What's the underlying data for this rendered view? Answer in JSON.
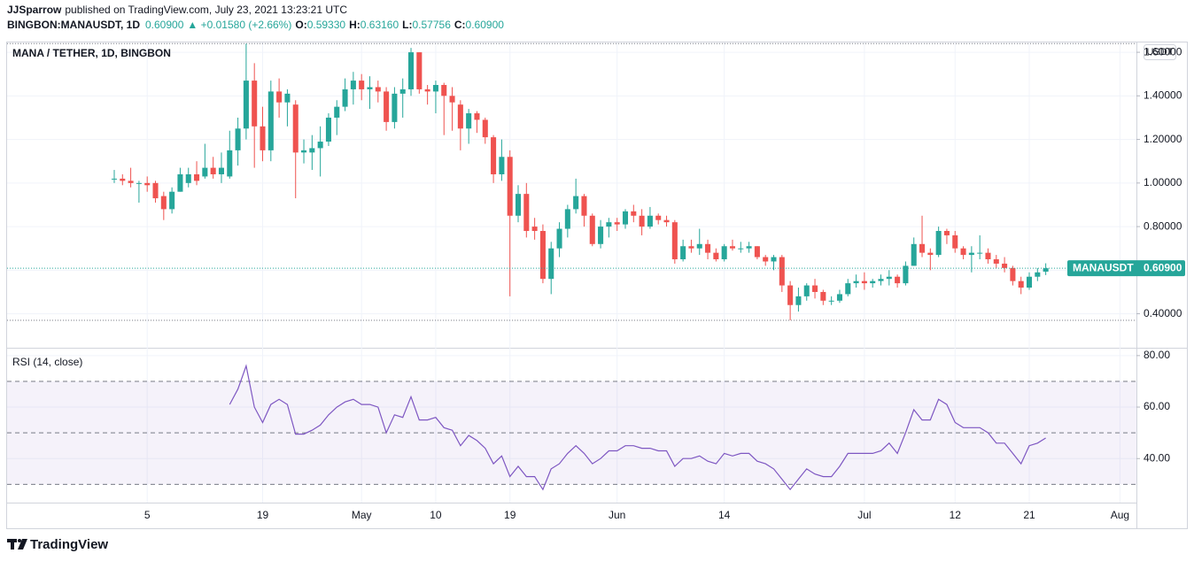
{
  "header": {
    "author": "JJSparrow",
    "published": "published on TradingView.com, July 23, 2021 13:23:21 UTC",
    "symbol": "BINGBON:MANAUSDT, 1D",
    "price": "0.60900",
    "change": "▲ +0.01580 (+2.66%)",
    "o_label": "O:",
    "o": "0.59330",
    "h_label": "H:",
    "h": "0.63160",
    "l_label": "L:",
    "l": "0.57756",
    "c_label": "C:",
    "c": "0.60900"
  },
  "chart_data": [
    {
      "type": "candlestick",
      "title": "MANA / TETHER, 1D, BINGBON",
      "currency": "USDT",
      "up_color": "#26a69a",
      "down_color": "#ef5350",
      "grid": true,
      "x": [
        "2021-04-01",
        "2021-04-02",
        "2021-04-03",
        "2021-04-04",
        "2021-04-05",
        "2021-04-06",
        "2021-04-07",
        "2021-04-08",
        "2021-04-09",
        "2021-04-10",
        "2021-04-11",
        "2021-04-12",
        "2021-04-13",
        "2021-04-14",
        "2021-04-15",
        "2021-04-16",
        "2021-04-17",
        "2021-04-18",
        "2021-04-19",
        "2021-04-20",
        "2021-04-21",
        "2021-04-22",
        "2021-04-23",
        "2021-04-24",
        "2021-04-25",
        "2021-04-26",
        "2021-04-27",
        "2021-04-28",
        "2021-04-29",
        "2021-04-30",
        "2021-05-01",
        "2021-05-02",
        "2021-05-03",
        "2021-05-04",
        "2021-05-05",
        "2021-05-06",
        "2021-05-07",
        "2021-05-08",
        "2021-05-09",
        "2021-05-10",
        "2021-05-11",
        "2021-05-12",
        "2021-05-13",
        "2021-05-14",
        "2021-05-15",
        "2021-05-16",
        "2021-05-17",
        "2021-05-18",
        "2021-05-19",
        "2021-05-20",
        "2021-05-21",
        "2021-05-22",
        "2021-05-23",
        "2021-05-24",
        "2021-05-25",
        "2021-05-26",
        "2021-05-27",
        "2021-05-28",
        "2021-05-29",
        "2021-05-30",
        "2021-05-31",
        "2021-06-01",
        "2021-06-02",
        "2021-06-03",
        "2021-06-04",
        "2021-06-05",
        "2021-06-06",
        "2021-06-07",
        "2021-06-08",
        "2021-06-09",
        "2021-06-10",
        "2021-06-11",
        "2021-06-12",
        "2021-06-13",
        "2021-06-14",
        "2021-06-15",
        "2021-06-16",
        "2021-06-17",
        "2021-06-18",
        "2021-06-19",
        "2021-06-20",
        "2021-06-21",
        "2021-06-22",
        "2021-06-23",
        "2021-06-24",
        "2021-06-25",
        "2021-06-26",
        "2021-06-27",
        "2021-06-28",
        "2021-06-29",
        "2021-06-30",
        "2021-07-01",
        "2021-07-02",
        "2021-07-03",
        "2021-07-04",
        "2021-07-05",
        "2021-07-06",
        "2021-07-07",
        "2021-07-08",
        "2021-07-09",
        "2021-07-10",
        "2021-07-11",
        "2021-07-12",
        "2021-07-13",
        "2021-07-14",
        "2021-07-15",
        "2021-07-16",
        "2021-07-17",
        "2021-07-18",
        "2021-07-19",
        "2021-07-20",
        "2021-07-21",
        "2021-07-22",
        "2021-07-23"
      ],
      "open": [
        1.02,
        1.02,
        1.01,
        1.0,
        1.0,
        1.0,
        0.94,
        0.88,
        0.96,
        1.0,
        1.04,
        1.03,
        1.07,
        1.04,
        1.03,
        1.15,
        1.25,
        1.47,
        1.26,
        1.15,
        1.42,
        1.37,
        1.36,
        1.14,
        1.14,
        1.16,
        1.19,
        1.3,
        1.35,
        1.43,
        1.47,
        1.43,
        1.44,
        1.42,
        1.28,
        1.41,
        1.43,
        1.6,
        1.43,
        1.42,
        1.45,
        1.4,
        1.36,
        1.25,
        1.32,
        1.29,
        1.21,
        1.04,
        1.12,
        0.85,
        0.95,
        0.8,
        0.78,
        0.56,
        0.7,
        0.79,
        0.88,
        0.94,
        0.85,
        0.72,
        0.8,
        0.82,
        0.81,
        0.87,
        0.85,
        0.8,
        0.85,
        0.83,
        0.82,
        0.65,
        0.71,
        0.7,
        0.72,
        0.68,
        0.65,
        0.71,
        0.7,
        0.7,
        0.71,
        0.66,
        0.64,
        0.66,
        0.53,
        0.44,
        0.48,
        0.53,
        0.5,
        0.46,
        0.46,
        0.49,
        0.54,
        0.55,
        0.54,
        0.55,
        0.56,
        0.57,
        0.54,
        0.62,
        0.72,
        0.68,
        0.67,
        0.78,
        0.76,
        0.7,
        0.67,
        0.68,
        0.68,
        0.65,
        0.63,
        0.61,
        0.55,
        0.52,
        0.57,
        0.5933
      ],
      "high": [
        1.06,
        1.04,
        1.07,
        1.01,
        1.03,
        1.01,
        0.96,
        0.98,
        1.07,
        1.07,
        1.1,
        1.18,
        1.12,
        1.14,
        1.24,
        1.3,
        1.64,
        1.55,
        1.35,
        1.47,
        1.48,
        1.43,
        1.38,
        1.2,
        1.22,
        1.26,
        1.32,
        1.38,
        1.48,
        1.51,
        1.5,
        1.49,
        1.47,
        1.44,
        1.44,
        1.48,
        1.62,
        1.6,
        1.45,
        1.47,
        1.46,
        1.44,
        1.38,
        1.34,
        1.33,
        1.3,
        1.22,
        1.2,
        1.15,
        0.99,
        1.0,
        0.84,
        0.81,
        0.73,
        0.82,
        0.9,
        1.02,
        0.95,
        0.86,
        0.83,
        0.84,
        0.84,
        0.88,
        0.9,
        0.88,
        0.89,
        0.86,
        0.85,
        0.83,
        0.74,
        0.74,
        0.79,
        0.74,
        0.7,
        0.72,
        0.74,
        0.73,
        0.73,
        0.71,
        0.67,
        0.67,
        0.67,
        0.55,
        0.52,
        0.54,
        0.56,
        0.51,
        0.48,
        0.51,
        0.56,
        0.58,
        0.59,
        0.56,
        0.58,
        0.6,
        0.58,
        0.64,
        0.75,
        0.85,
        0.7,
        0.8,
        0.79,
        0.78,
        0.71,
        0.71,
        0.76,
        0.7,
        0.67,
        0.66,
        0.62,
        0.57,
        0.59,
        0.61,
        0.6316
      ],
      "low": [
        1.0,
        0.99,
        0.98,
        0.91,
        0.96,
        0.91,
        0.83,
        0.86,
        0.96,
        0.98,
        0.99,
        1.02,
        1.02,
        1.0,
        1.02,
        1.08,
        1.2,
        1.07,
        1.1,
        1.1,
        1.3,
        1.26,
        0.93,
        1.09,
        1.06,
        1.03,
        1.17,
        1.22,
        1.33,
        1.36,
        1.38,
        1.34,
        1.37,
        1.24,
        1.25,
        1.3,
        1.4,
        1.41,
        1.36,
        1.32,
        1.22,
        1.24,
        1.15,
        1.18,
        1.23,
        1.18,
        1.0,
        1.01,
        0.48,
        0.82,
        0.75,
        0.74,
        0.54,
        0.49,
        0.66,
        0.75,
        0.86,
        0.8,
        0.71,
        0.7,
        0.75,
        0.78,
        0.79,
        0.82,
        0.76,
        0.79,
        0.81,
        0.8,
        0.63,
        0.64,
        0.68,
        0.67,
        0.65,
        0.64,
        0.64,
        0.69,
        0.68,
        0.68,
        0.65,
        0.62,
        0.6,
        0.5,
        0.37,
        0.41,
        0.46,
        0.47,
        0.44,
        0.44,
        0.45,
        0.48,
        0.52,
        0.51,
        0.52,
        0.53,
        0.53,
        0.52,
        0.53,
        0.62,
        0.66,
        0.6,
        0.66,
        0.72,
        0.68,
        0.65,
        0.59,
        0.65,
        0.63,
        0.61,
        0.59,
        0.53,
        0.49,
        0.51,
        0.55,
        0.57756
      ],
      "close": [
        1.02,
        1.01,
        1.0,
        1.0,
        0.99,
        0.93,
        0.88,
        0.96,
        1.04,
        1.04,
        1.01,
        1.07,
        1.04,
        1.07,
        1.15,
        1.25,
        1.47,
        1.26,
        1.15,
        1.42,
        1.37,
        1.41,
        1.14,
        1.15,
        1.16,
        1.19,
        1.3,
        1.35,
        1.43,
        1.47,
        1.43,
        1.44,
        1.42,
        1.28,
        1.41,
        1.43,
        1.6,
        1.43,
        1.42,
        1.45,
        1.4,
        1.37,
        1.25,
        1.32,
        1.29,
        1.21,
        1.04,
        1.12,
        0.85,
        0.95,
        0.78,
        0.78,
        0.56,
        0.7,
        0.79,
        0.88,
        0.94,
        0.85,
        0.72,
        0.8,
        0.82,
        0.81,
        0.87,
        0.85,
        0.8,
        0.85,
        0.83,
        0.82,
        0.65,
        0.71,
        0.7,
        0.72,
        0.68,
        0.65,
        0.71,
        0.7,
        0.7,
        0.71,
        0.66,
        0.64,
        0.66,
        0.53,
        0.44,
        0.48,
        0.53,
        0.5,
        0.46,
        0.46,
        0.49,
        0.54,
        0.55,
        0.54,
        0.55,
        0.56,
        0.57,
        0.54,
        0.62,
        0.72,
        0.68,
        0.67,
        0.78,
        0.76,
        0.7,
        0.67,
        0.68,
        0.68,
        0.65,
        0.63,
        0.61,
        0.55,
        0.52,
        0.57,
        0.59,
        0.609
      ],
      "ylim": [
        0.244,
        1.645
      ],
      "yticks": [
        {
          "value": 0.4,
          "label": "0.40000"
        },
        {
          "value": 0.6,
          "label": "0.60000"
        },
        {
          "value": 0.8,
          "label": "0.80000"
        },
        {
          "value": 1.0,
          "label": "1.00000"
        },
        {
          "value": 1.2,
          "label": "1.20000"
        },
        {
          "value": 1.4,
          "label": "1.40000"
        },
        {
          "value": 1.6,
          "label": "1.60000"
        }
      ],
      "xlim": [
        "2021-03-19",
        "2021-08-03"
      ],
      "xticks": [
        {
          "value": "2021-04-05",
          "label": "5"
        },
        {
          "value": "2021-04-19",
          "label": "19"
        },
        {
          "value": "2021-05-01",
          "label": "May"
        },
        {
          "value": "2021-05-10",
          "label": "10"
        },
        {
          "value": "2021-05-19",
          "label": "19"
        },
        {
          "value": "2021-06-01",
          "label": "Jun"
        },
        {
          "value": "2021-06-14",
          "label": "14"
        },
        {
          "value": "2021-07-01",
          "label": "Jul"
        },
        {
          "value": "2021-07-12",
          "label": "12"
        },
        {
          "value": "2021-07-21",
          "label": "21"
        },
        {
          "value": "2021-08-01",
          "label": "Aug"
        }
      ],
      "last_price": {
        "symbol": "MANAUSDT",
        "value": 0.609,
        "label": "0.60900"
      }
    },
    {
      "type": "line",
      "title": "RSI (14, close)",
      "color": "#7e57c2",
      "band_color": "#7e57c2",
      "values": [
        null,
        null,
        null,
        null,
        null,
        null,
        null,
        null,
        null,
        null,
        null,
        null,
        null,
        null,
        61,
        67,
        76,
        60,
        54,
        61,
        63,
        61,
        49.5,
        49.5,
        51,
        53,
        57,
        60,
        62,
        63,
        61,
        61,
        60,
        50,
        57,
        56,
        64,
        55,
        55,
        56,
        52,
        51,
        45,
        49,
        47,
        44,
        38,
        41,
        33,
        37,
        33,
        33,
        28,
        36,
        38,
        42,
        45,
        42,
        38,
        40,
        43,
        43,
        45,
        45,
        44,
        44,
        43,
        43,
        37,
        40,
        40,
        41,
        39,
        38,
        42,
        41,
        42,
        42,
        39,
        38,
        36,
        32,
        28,
        32,
        36,
        34,
        33,
        33,
        37,
        42,
        42,
        42,
        42,
        43,
        46,
        42,
        50,
        59,
        55,
        55,
        63,
        61,
        54,
        52,
        52,
        52,
        50,
        46,
        46,
        42,
        38,
        45,
        46,
        48
      ],
      "ylim": [
        22.9,
        82.7
      ],
      "yticks": [
        {
          "value": 40,
          "label": "40.00"
        },
        {
          "value": 60,
          "label": "60.00"
        },
        {
          "value": 80,
          "label": "80.00"
        }
      ],
      "bands": [
        30,
        50,
        70
      ]
    }
  ],
  "footer": {
    "brand": "TradingView"
  }
}
